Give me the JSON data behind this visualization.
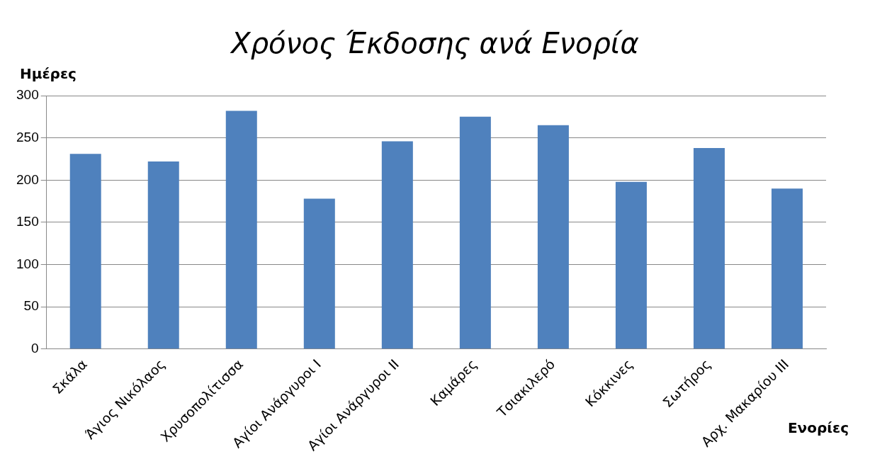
{
  "chart_data": {
    "type": "bar",
    "title": "Χρόνος Έκδοσης ανά Ενορία",
    "ylabel": "Ημέρες",
    "xlabel": "Ενορίες",
    "categories": [
      "Σκάλα",
      "Άγιος Νικόλαος",
      "Χρυσοπολίτισσα",
      "Αγίοι Ανάργυροι Ι",
      "Αγίοι Ανάργυροι ΙΙ",
      "Καμάρες",
      "Τσιακιλερό",
      "Κόκκινες",
      "Σωτήρος",
      "Αρχ. Μακαρίου ΙΙΙ"
    ],
    "values": [
      231,
      222,
      282,
      178,
      246,
      275,
      265,
      198,
      238,
      190
    ],
    "color": "#4f81bd",
    "ylim": [
      0,
      300
    ],
    "yticks": [
      0,
      50,
      100,
      150,
      200,
      250,
      300
    ],
    "grid": "y",
    "legend": false
  }
}
